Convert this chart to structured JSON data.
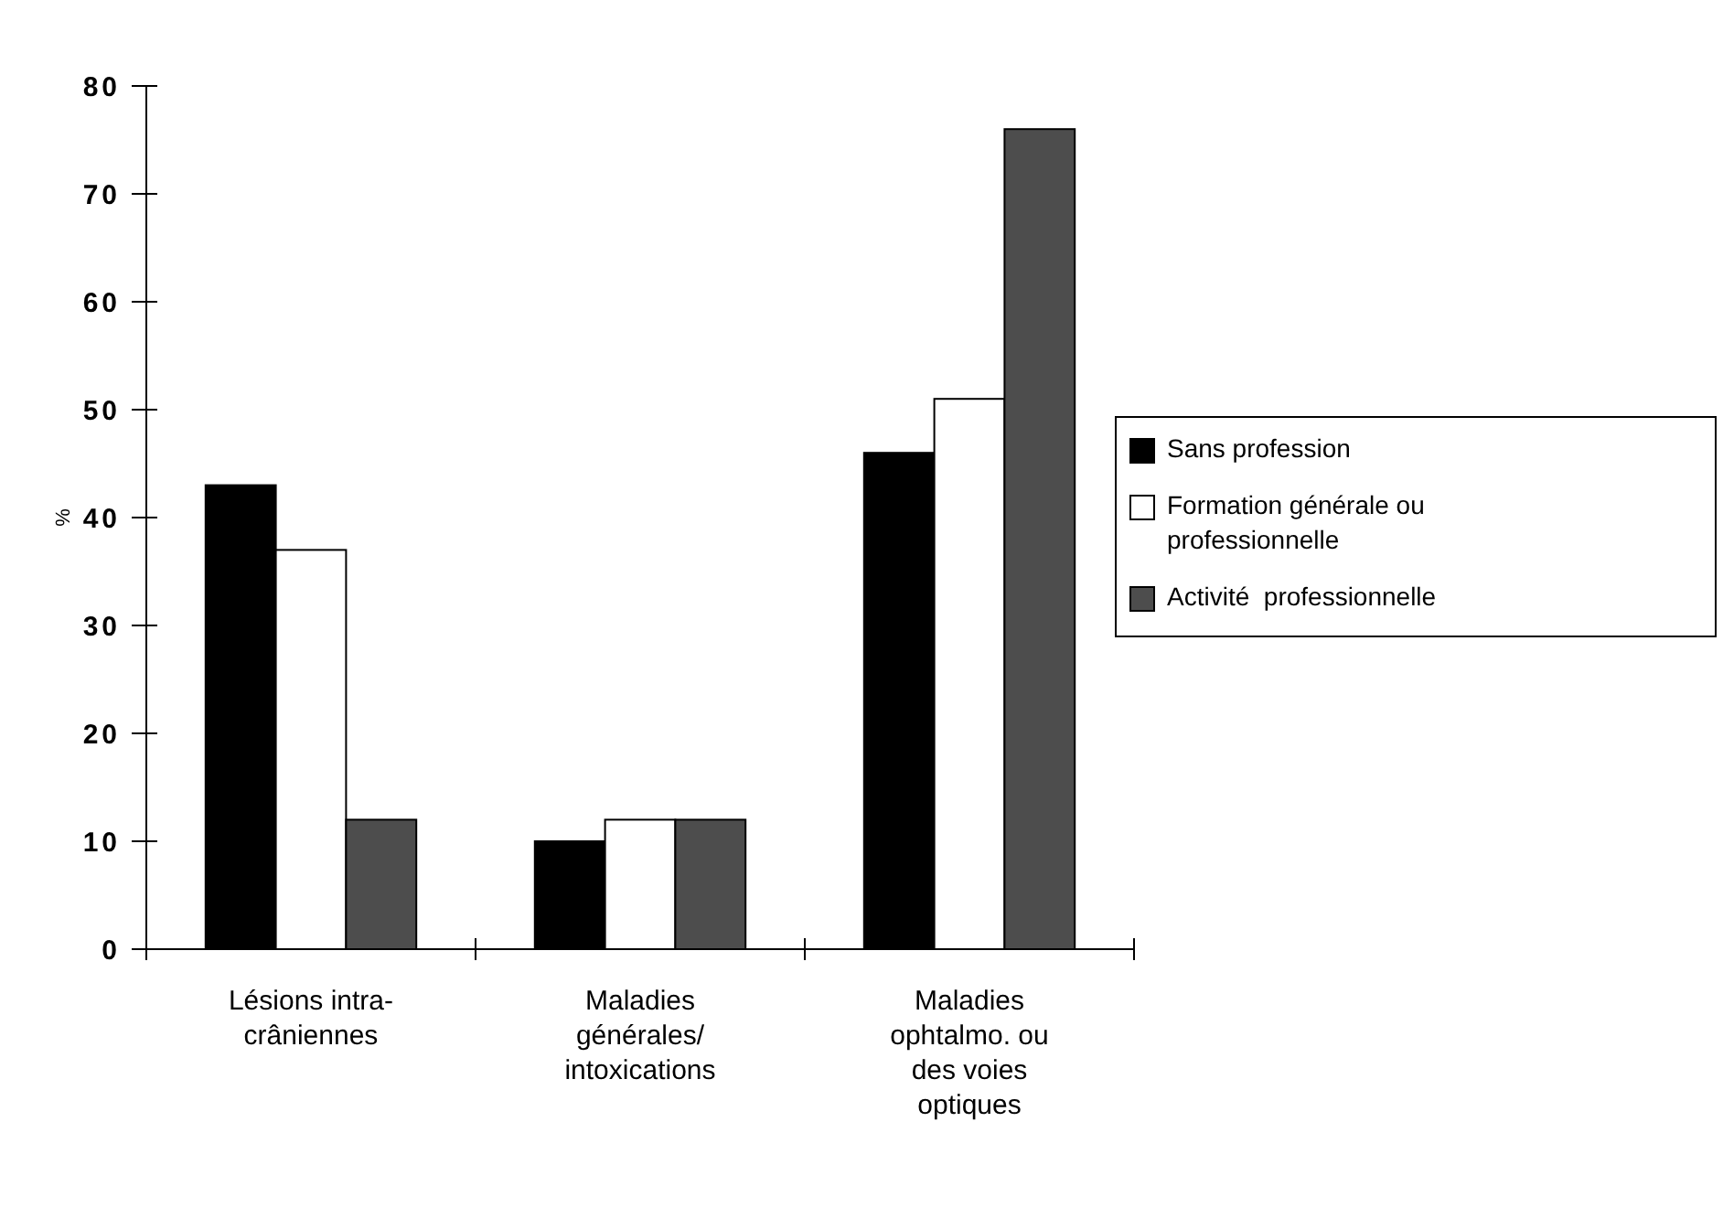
{
  "chart_data": {
    "type": "bar",
    "ylabel": "%",
    "categories": [
      "Lésions intra-\ncrâniennes",
      "Maladies\ngénérales/\nintoxications",
      "Maladies\nophtalmo. ou\ndes voies\noptiques"
    ],
    "series": [
      {
        "name": "Sans profession",
        "color": "#000000",
        "values": [
          43,
          10,
          46
        ]
      },
      {
        "name": "Formation générale ou\nprofessionnelle",
        "color": "#ffffff",
        "values": [
          37,
          12,
          51
        ]
      },
      {
        "name": "Activité  professionnelle",
        "color": "#4d4d4d",
        "values": [
          12,
          12,
          76
        ]
      }
    ],
    "ylim": [
      0,
      80
    ],
    "yticks": [
      0,
      10,
      20,
      30,
      40,
      50,
      60,
      70,
      80
    ],
    "legend": "right",
    "grid": false
  }
}
